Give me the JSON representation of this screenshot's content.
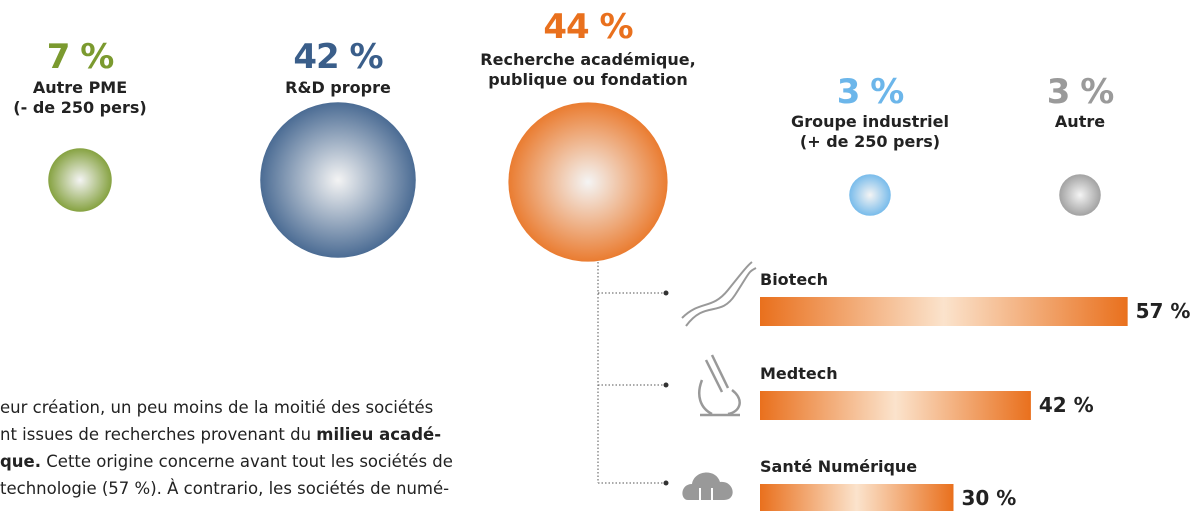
{
  "chart_data": [
    {
      "type": "bubble",
      "categories": [
        "Autre PME\n(- de 250 pers)",
        "R&D propre",
        "Recherche académique,\npublique ou fondation",
        "Groupe industriel\n(+ de 250 pers)",
        "Autre"
      ],
      "values": [
        7,
        42,
        44,
        3,
        3
      ],
      "value_labels": [
        "7 %",
        "42 %",
        "44 %",
        "3 %",
        "3 %"
      ],
      "colors": [
        "#7b9a2f",
        "#3a5e8a",
        "#e9701d",
        "#6cb6ea",
        "#9a9a9a"
      ]
    },
    {
      "type": "bar",
      "categories": [
        "Biotech",
        "Medtech",
        "Santé Numérique"
      ],
      "values": [
        57,
        42,
        30
      ],
      "value_labels": [
        "57 %",
        "42 %",
        "30 %"
      ],
      "xlim": [
        0,
        100
      ],
      "color": "#e9701d"
    }
  ],
  "text": [
    [
      {
        "t": "eur création, un peu moins de la moitié des sociétés"
      }
    ],
    [
      {
        "t": "nt issues de recherches provenant du "
      },
      {
        "t": "milieu acadé-",
        "b": true
      }
    ],
    [
      {
        "t": "que.",
        "b": true
      },
      {
        "t": " Cette origine concerne avant tout les sociétés de"
      }
    ],
    [
      {
        "t": "technologie (57 %). À contrario, les sociétés de numé-"
      }
    ]
  ]
}
